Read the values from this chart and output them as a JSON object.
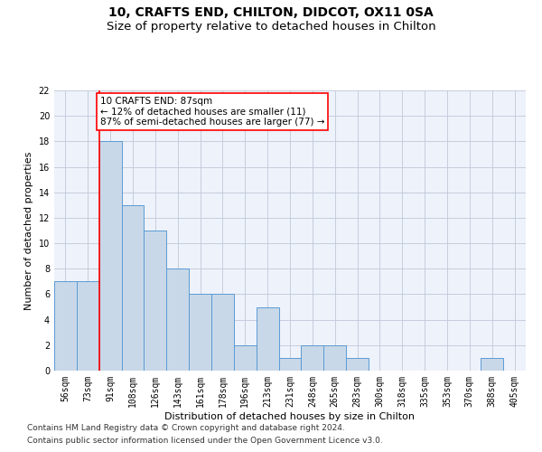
{
  "title1": "10, CRAFTS END, CHILTON, DIDCOT, OX11 0SA",
  "title2": "Size of property relative to detached houses in Chilton",
  "xlabel": "Distribution of detached houses by size in Chilton",
  "ylabel": "Number of detached properties",
  "categories": [
    "56sqm",
    "73sqm",
    "91sqm",
    "108sqm",
    "126sqm",
    "143sqm",
    "161sqm",
    "178sqm",
    "196sqm",
    "213sqm",
    "231sqm",
    "248sqm",
    "265sqm",
    "283sqm",
    "300sqm",
    "318sqm",
    "335sqm",
    "353sqm",
    "370sqm",
    "388sqm",
    "405sqm"
  ],
  "values": [
    7,
    7,
    18,
    13,
    11,
    8,
    6,
    6,
    2,
    5,
    1,
    2,
    2,
    1,
    0,
    0,
    0,
    0,
    0,
    1,
    0
  ],
  "bar_color": "#c8d8e8",
  "bar_edge_color": "#5b9bd5",
  "bar_edge_width": 0.7,
  "red_line_index": 2,
  "annotation_text": "10 CRAFTS END: 87sqm\n← 12% of detached houses are smaller (11)\n87% of semi-detached houses are larger (77) →",
  "annotation_box_color": "white",
  "annotation_box_edge_color": "red",
  "ylim": [
    0,
    22
  ],
  "yticks": [
    0,
    2,
    4,
    6,
    8,
    10,
    12,
    14,
    16,
    18,
    20,
    22
  ],
  "grid_color": "#c0c8d8",
  "background_color": "#eef2fa",
  "footnote1": "Contains HM Land Registry data © Crown copyright and database right 2024.",
  "footnote2": "Contains public sector information licensed under the Open Government Licence v3.0.",
  "title_fontsize": 10,
  "subtitle_fontsize": 9.5,
  "axis_label_fontsize": 8,
  "tick_fontsize": 7,
  "annotation_fontsize": 7.5,
  "footnote_fontsize": 6.5
}
